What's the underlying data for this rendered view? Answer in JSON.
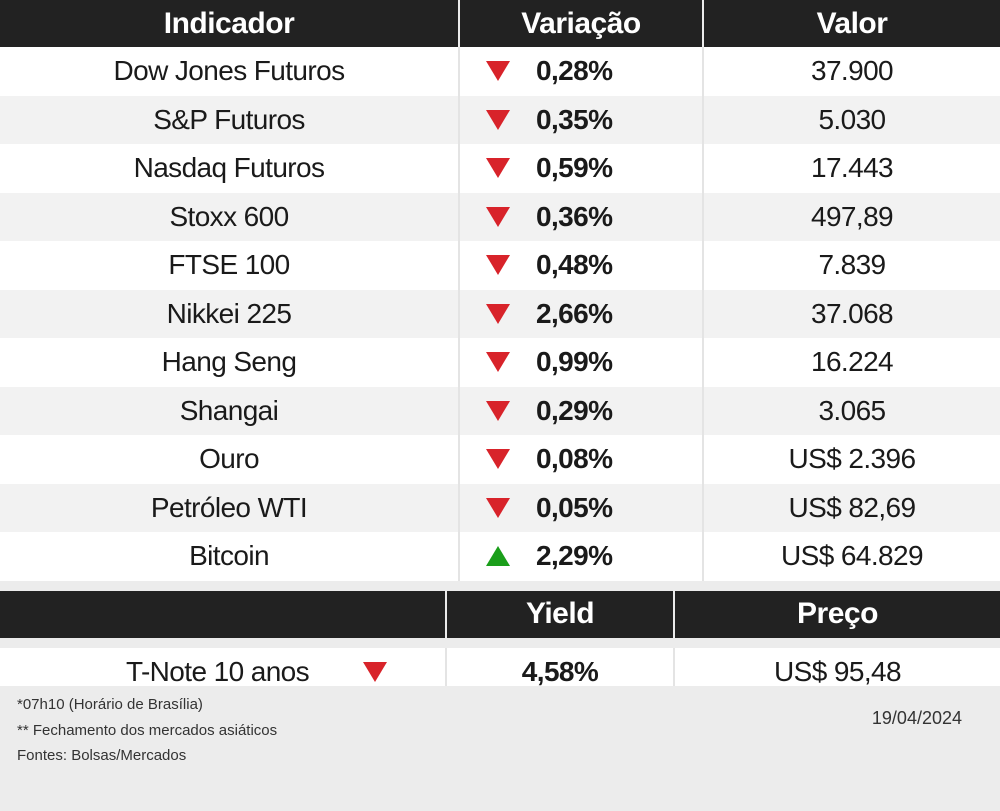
{
  "table": {
    "headers": [
      "Indicador",
      "Variação",
      "Valor"
    ],
    "rows": [
      {
        "name": "Dow Jones Futuros",
        "dir": "down",
        "var": "0,28%",
        "value": "37.900"
      },
      {
        "name": "S&P Futuros",
        "dir": "down",
        "var": "0,35%",
        "value": "5.030"
      },
      {
        "name": "Nasdaq Futuros",
        "dir": "down",
        "var": "0,59%",
        "value": "17.443"
      },
      {
        "name": "Stoxx 600",
        "dir": "down",
        "var": "0,36%",
        "value": "497,89"
      },
      {
        "name": "FTSE 100",
        "dir": "down",
        "var": "0,48%",
        "value": "7.839"
      },
      {
        "name": "Nikkei 225",
        "dir": "down",
        "var": "2,66%",
        "value": "37.068"
      },
      {
        "name": "Hang Seng",
        "dir": "down",
        "var": "0,99%",
        "value": "16.224"
      },
      {
        "name": "Shangai",
        "dir": "down",
        "var": "0,29%",
        "value": "3.065"
      },
      {
        "name": "Ouro",
        "dir": "down",
        "var": "0,08%",
        "value": "US$ 2.396"
      },
      {
        "name": "Petróleo WTI",
        "dir": "down",
        "var": "0,05%",
        "value": "US$ 82,69"
      },
      {
        "name": "Bitcoin",
        "dir": "up",
        "var": "2,29%",
        "value": "US$ 64.829"
      }
    ]
  },
  "bond": {
    "headers": [
      "",
      "Yield",
      "Preço"
    ],
    "name": "T-Note 10 anos",
    "dir": "down",
    "yield": "4,58%",
    "price": "US$ 95,48"
  },
  "footer": {
    "notes": [
      "*07h10 (Horário de Brasília)",
      "** Fechamento dos mercados asiáticos",
      "Fontes: Bolsas/Mercados"
    ],
    "date": "19/04/2024"
  },
  "colors": {
    "down": "#d8232a",
    "up": "#1a9e1a",
    "header_bg": "#222222"
  }
}
